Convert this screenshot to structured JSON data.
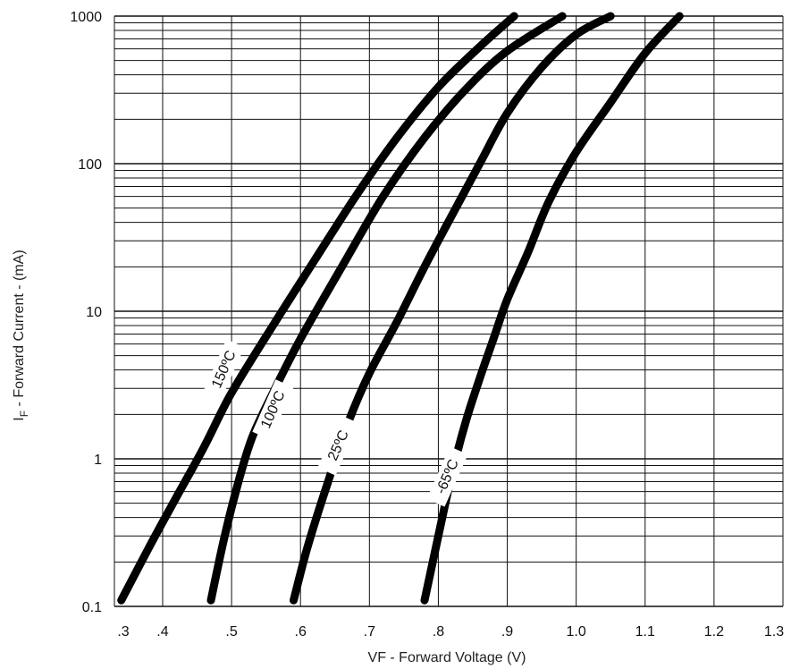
{
  "chart_data": {
    "type": "line",
    "title": "",
    "xlabel": "VF - Forward Voltage (V)",
    "ylabel_main": "I",
    "ylabel_sub": "F",
    "ylabel_rest": " - Forward Current - (mA)",
    "xlim": [
      0.33,
      1.3
    ],
    "ylim": [
      0.1,
      1000
    ],
    "yscale": "log",
    "grid": true,
    "x_ticks": [
      {
        "value": 0.3,
        "label": ".3"
      },
      {
        "value": 0.4,
        "label": ".4"
      },
      {
        "value": 0.5,
        "label": ".5"
      },
      {
        "value": 0.6,
        "label": ".6"
      },
      {
        "value": 0.7,
        "label": ".7"
      },
      {
        "value": 0.8,
        "label": ".8"
      },
      {
        "value": 0.9,
        "label": ".9"
      },
      {
        "value": 1.0,
        "label": "1.0"
      },
      {
        "value": 1.1,
        "label": "1.1"
      },
      {
        "value": 1.2,
        "label": "1.2"
      },
      {
        "value": 1.3,
        "label": "1.3"
      }
    ],
    "y_ticks": [
      {
        "value": 0.1,
        "label": "0.1"
      },
      {
        "value": 1,
        "label": "1"
      },
      {
        "value": 10,
        "label": "10"
      },
      {
        "value": 100,
        "label": "100"
      },
      {
        "value": 1000,
        "label": "1000"
      }
    ],
    "series": [
      {
        "name": "150ºC",
        "color": "#000000",
        "x": [
          0.34,
          0.38,
          0.42,
          0.46,
          0.5,
          0.56,
          0.62,
          0.68,
          0.74,
          0.8,
          0.86,
          0.91
        ],
        "y": [
          0.11,
          0.25,
          0.55,
          1.2,
          2.8,
          8.0,
          22,
          60,
          150,
          330,
          620,
          1000
        ]
      },
      {
        "name": "100ºC",
        "color": "#000000",
        "x": [
          0.47,
          0.49,
          0.51,
          0.53,
          0.56,
          0.6,
          0.66,
          0.72,
          0.78,
          0.84,
          0.9,
          0.98
        ],
        "y": [
          0.11,
          0.3,
          0.7,
          1.4,
          2.8,
          6.5,
          20,
          60,
          150,
          320,
          580,
          1000
        ]
      },
      {
        "name": "25ºC",
        "color": "#000000",
        "x": [
          0.59,
          0.61,
          0.64,
          0.67,
          0.7,
          0.74,
          0.78,
          0.82,
          0.86,
          0.9,
          0.95,
          1.0,
          1.05
        ],
        "y": [
          0.11,
          0.25,
          0.7,
          1.8,
          3.8,
          8.5,
          20,
          45,
          100,
          220,
          450,
          750,
          1000
        ]
      },
      {
        "name": "-65ºC",
        "color": "#000000",
        "x": [
          0.78,
          0.8,
          0.82,
          0.84,
          0.86,
          0.88,
          0.9,
          0.93,
          0.96,
          1.0,
          1.05,
          1.1,
          1.15
        ],
        "y": [
          0.11,
          0.3,
          0.8,
          1.8,
          3.5,
          6.5,
          12,
          25,
          55,
          120,
          260,
          560,
          1000
        ]
      }
    ],
    "annotations": [
      {
        "text": "150ºC",
        "series": 0
      },
      {
        "text": "100ºC",
        "series": 1
      },
      {
        "text": "25ºC",
        "series": 2
      },
      {
        "text": "-65ºC",
        "series": 3
      }
    ]
  }
}
